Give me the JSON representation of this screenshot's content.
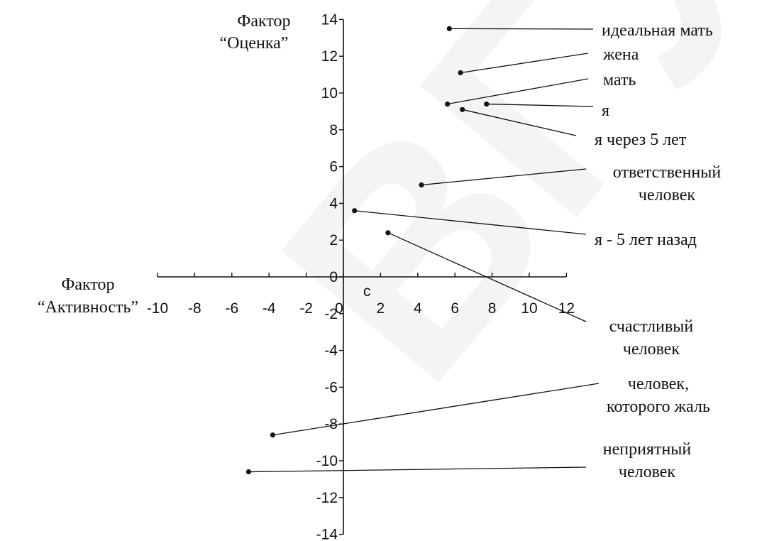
{
  "chart_data": {
    "type": "scatter",
    "y_title": [
      "Фактор",
      "“Оценка”"
    ],
    "x_title": [
      "Фактор",
      "“Активность”"
    ],
    "origin_label": "c",
    "xlim": [
      -10,
      12
    ],
    "ylim": [
      -14,
      14
    ],
    "x_ticks": [
      -10,
      -8,
      -6,
      -4,
      -2,
      0,
      2,
      4,
      6,
      8,
      10,
      12
    ],
    "y_ticks": [
      14,
      12,
      10,
      8,
      6,
      4,
      2,
      0,
      -2,
      -4,
      -6,
      -8,
      -10,
      -12,
      -14
    ],
    "grid": false,
    "points": [
      {
        "x": 5.7,
        "y": 13.5,
        "label": [
          "идеальная мать"
        ]
      },
      {
        "x": 6.3,
        "y": 11.1,
        "label": [
          "жена"
        ]
      },
      {
        "x": 5.6,
        "y": 9.4,
        "label": [
          "мать"
        ]
      },
      {
        "x": 7.7,
        "y": 9.4,
        "label": [
          "я"
        ]
      },
      {
        "x": 6.4,
        "y": 9.1,
        "label": [
          "я через 5 лет"
        ]
      },
      {
        "x": 4.2,
        "y": 5.0,
        "label": [
          "ответственный",
          "человек"
        ]
      },
      {
        "x": 0.6,
        "y": 3.6,
        "label": [
          "я - 5 лет назад"
        ]
      },
      {
        "x": 2.4,
        "y": 2.4,
        "label": [
          "счастливый",
          "человек"
        ]
      },
      {
        "x": -3.8,
        "y": -8.6,
        "label": [
          "человек,",
          "которого жаль"
        ]
      },
      {
        "x": -5.1,
        "y": -10.6,
        "label": [
          "неприятный",
          "человек"
        ]
      }
    ]
  },
  "watermark": "ВГУ"
}
